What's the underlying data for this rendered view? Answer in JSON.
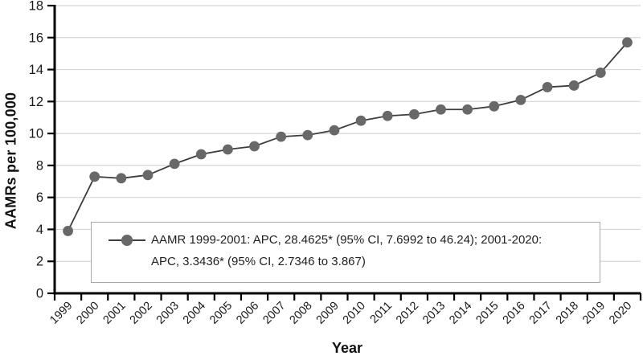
{
  "chart_data": {
    "type": "line",
    "title": "",
    "xlabel": "Year",
    "ylabel": "AAMRs per 100,000",
    "categories": [
      "1999",
      "2000",
      "2001",
      "2002",
      "2003",
      "2004",
      "2005",
      "2006",
      "2007",
      "2008",
      "2009",
      "2010",
      "2011",
      "2012",
      "2013",
      "2014",
      "2015",
      "2016",
      "2017",
      "2018",
      "2019",
      "2020"
    ],
    "series": [
      {
        "name": "AAMR",
        "values": [
          3.9,
          7.3,
          7.2,
          7.4,
          8.1,
          8.7,
          9.0,
          9.2,
          9.8,
          9.9,
          10.2,
          10.8,
          11.1,
          11.2,
          11.5,
          11.5,
          11.7,
          12.1,
          12.9,
          13.0,
          13.8,
          15.7
        ]
      }
    ],
    "ylim": [
      0,
      18
    ],
    "yticks": [
      0,
      2,
      4,
      6,
      8,
      10,
      12,
      14,
      16,
      18
    ],
    "grid": "horizontal-major",
    "legend": {
      "position": "inside-bottom-left",
      "lines": [
        "AAMR 1999-2001: APC, 28.4625* (95% CI, 7.6992 to 46.24); 2001-2020:",
        "APC, 3.3436* (95% CI, 2.7346 to 3.867)"
      ],
      "full_text": "AAMR 1999-2001: APC, 28.4625* (95% CI, 7.6992 to 46.24); 2001-2020: APC, 3.3436* (95% CI, 2.7346 to 3.867)"
    },
    "colors": {
      "marker": "#686868",
      "line": "#3d3d3d",
      "gridline": "#d6d6d6",
      "axis": "#000000",
      "text": "#1a1a1a",
      "legend_border": "#a8a8a8"
    }
  }
}
